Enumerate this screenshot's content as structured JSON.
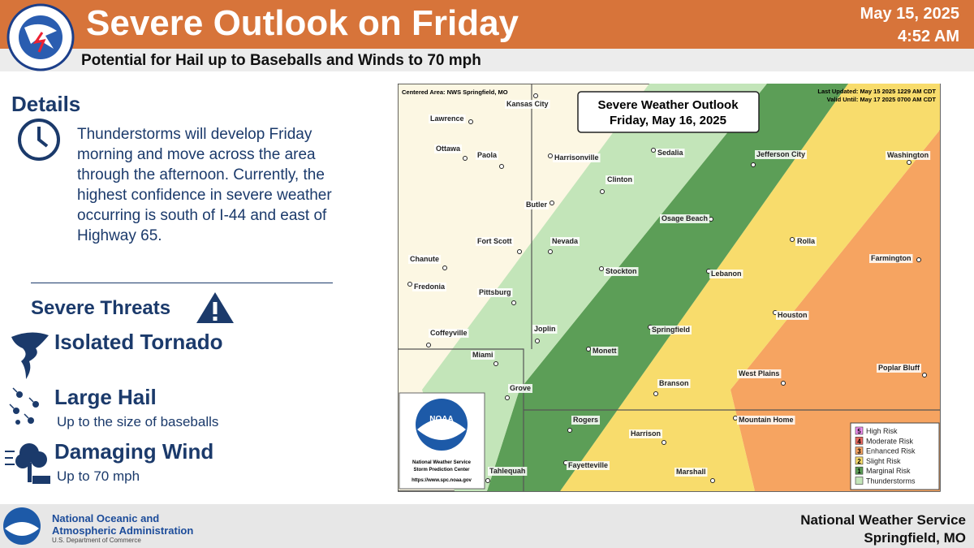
{
  "header": {
    "title": "Severe Outlook on Friday",
    "subtitle": "Potential for Hail up to Baseballs and Winds to 70 mph",
    "date": "May 15, 2025",
    "time": "4:52 AM"
  },
  "details": {
    "heading": "Details",
    "text": "Thunderstorms will develop Friday morning and move across the area through the afternoon. Currently, the highest confidence in severe weather occurring is south of I-44 and east of Highway 65."
  },
  "threats": {
    "heading": "Severe Threats",
    "items": [
      {
        "name": "Isolated Tornado"
      },
      {
        "name": "Large Hail",
        "desc": "Up to the size of baseballs"
      },
      {
        "name": "Damaging Wind",
        "desc": "Up to 70 mph"
      }
    ]
  },
  "map": {
    "centered_area": "Centered Area: NWS Springfield, MO",
    "last_updated": "Last Updated: May 15 2025 1229 AM CDT",
    "valid_until": "Valid Until: May 17 2025 0700 AM CDT",
    "title_line1": "Severe Weather Outlook",
    "title_line2": "Friday, May 16, 2025",
    "credit": [
      "NOAA",
      "National Weather Service",
      "Storm Prediction Center",
      "https://www.spc.noaa.gov"
    ],
    "cities": [
      "Kansas City",
      "Lawrence",
      "Ottawa",
      "Paola",
      "Harrisonville",
      "Sedalia",
      "Jefferson City",
      "Washington",
      "Clinton",
      "Butler",
      "Osage Beach",
      "Fort Scott",
      "Nevada",
      "Rolla",
      "Chanute",
      "Farmington",
      "Stockton",
      "Lebanon",
      "Fredonia",
      "Pittsburg",
      "Houston",
      "Springfield",
      "Coffeyville",
      "Joplin",
      "Miami",
      "Monett",
      "Poplar Bluff",
      "West Plains",
      "Branson",
      "Grove",
      "Rogers",
      "Mountain Home",
      "Harrison",
      "Fayetteville",
      "Marshall",
      "Tahlequah"
    ],
    "legend": [
      {
        "number": 5,
        "label": "High Risk",
        "color": "#f08ef0"
      },
      {
        "number": 4,
        "label": "Moderate Risk",
        "color": "#e8695f"
      },
      {
        "number": 3,
        "label": "Enhanced Risk",
        "color": "#f6a461"
      },
      {
        "number": 2,
        "label": "Slight Risk",
        "color": "#f8dc6c"
      },
      {
        "number": 1,
        "label": "Marginal Risk",
        "color": "#5c9e57"
      },
      {
        "label": "Thunderstorms",
        "color": "#c3e5b9"
      }
    ]
  },
  "footer": {
    "agency_line1": "National Oceanic and",
    "agency_line2": "Atmospheric Administration",
    "department": "U.S. Department of Commerce",
    "office_line1": "National Weather Service",
    "office_line2": "Springfield, MO"
  }
}
